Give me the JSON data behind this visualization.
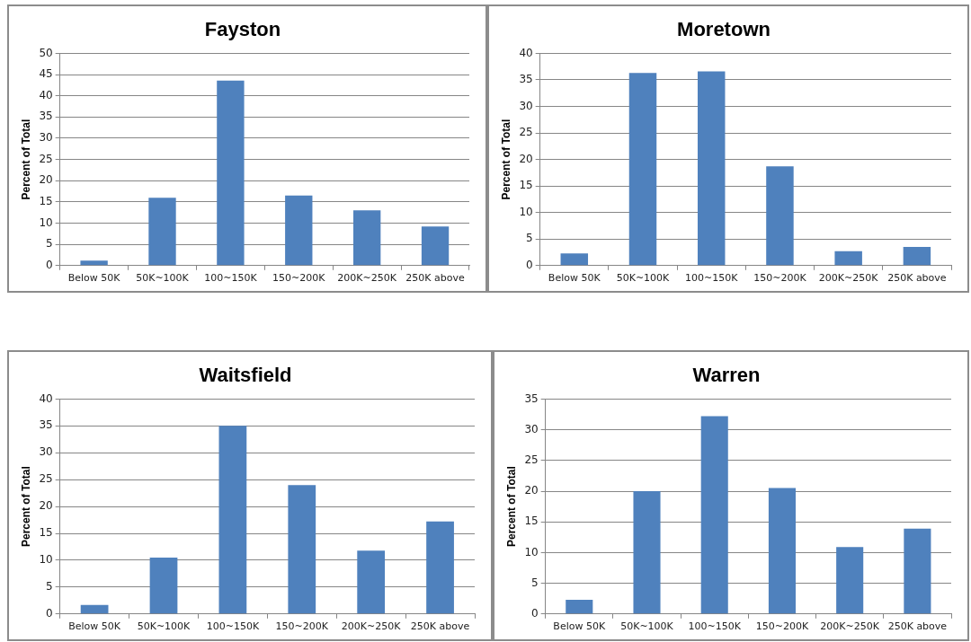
{
  "chart_data": [
    {
      "type": "bar",
      "title": "Fayston",
      "ylabel": "Percent of Total",
      "categories": [
        "Below 50K",
        "50K~100K",
        "100~150K",
        "150~200K",
        "200K~250K",
        "250K above"
      ],
      "values": [
        1.2,
        16,
        43.6,
        16.5,
        13,
        9.2
      ],
      "color": "#4f81bd",
      "ylim": [
        0,
        50
      ],
      "yticks": [
        0,
        5,
        10,
        15,
        20,
        25,
        30,
        35,
        40,
        45,
        50
      ],
      "grid": "y"
    },
    {
      "type": "bar",
      "title": "Moretown",
      "ylabel": "Percent of Total",
      "categories": [
        "Below 50K",
        "50K~100K",
        "100~150K",
        "150~200K",
        "200K~250K",
        "250K above"
      ],
      "values": [
        2.3,
        36.3,
        36.6,
        18.7,
        2.7,
        3.5
      ],
      "color": "#4f81bd",
      "ylim": [
        0,
        40
      ],
      "yticks": [
        0,
        5,
        10,
        15,
        20,
        25,
        30,
        35,
        40
      ],
      "grid": "y"
    },
    {
      "type": "bar",
      "title": "Waitsfield",
      "ylabel": "Percent of Total",
      "categories": [
        "Below 50K",
        "50K~100K",
        "100~150K",
        "150~200K",
        "200K~250K",
        "250K above"
      ],
      "values": [
        1.7,
        10.5,
        35,
        24,
        11.8,
        17.2
      ],
      "color": "#4f81bd",
      "ylim": [
        0,
        40
      ],
      "yticks": [
        0,
        5,
        10,
        15,
        20,
        25,
        30,
        35,
        40
      ],
      "grid": "y"
    },
    {
      "type": "bar",
      "title": "Warren",
      "ylabel": "Percent of Total",
      "categories": [
        "Below 50K",
        "50K~100K",
        "100~150K",
        "150~200K",
        "200K~250K",
        "250K above"
      ],
      "values": [
        2.3,
        20,
        32.2,
        20.5,
        10.9,
        13.9
      ],
      "color": "#4f81bd",
      "ylim": [
        0,
        35
      ],
      "yticks": [
        0,
        5,
        10,
        15,
        20,
        25,
        30,
        35
      ],
      "grid": "y"
    }
  ]
}
